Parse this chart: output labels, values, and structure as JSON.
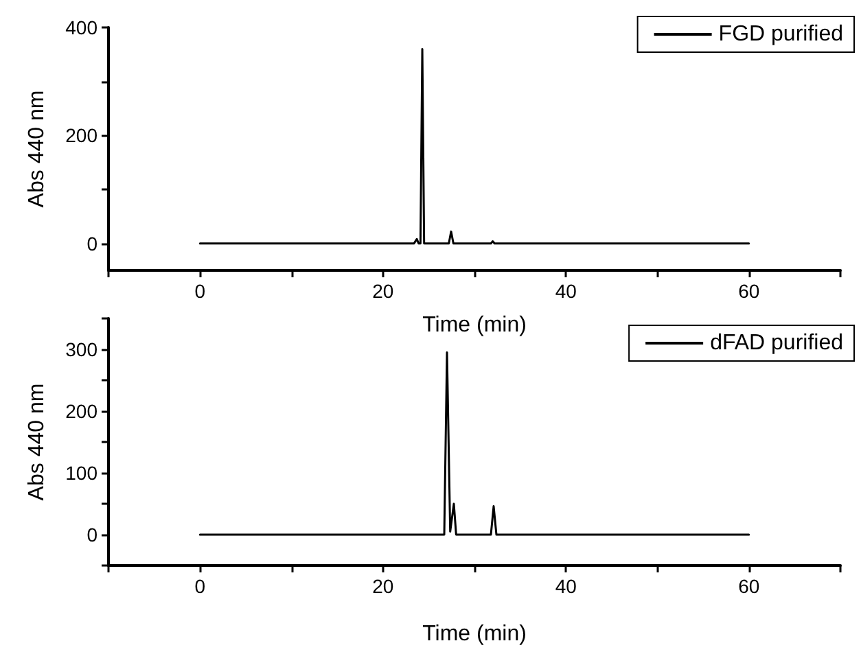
{
  "chart_data": [
    {
      "type": "line",
      "xlabel": "Time (min)",
      "ylabel": "Abs 440 nm",
      "legend": "top right",
      "grid": false,
      "marker": "none",
      "line_style": "solid",
      "xlim": [
        -10,
        70
      ],
      "xticks": [
        {
          "value": -10,
          "label": null
        },
        0,
        {
          "value": 10,
          "label": null
        },
        20,
        {
          "value": 30,
          "label": null
        },
        40,
        {
          "value": 50,
          "label": null
        },
        60,
        {
          "value": 70,
          "label": null
        }
      ],
      "ylim": [
        -50,
        400
      ],
      "yticks": [
        0,
        {
          "value": 100,
          "label": null
        },
        200,
        {
          "value": 300,
          "label": null
        },
        400
      ],
      "series": [
        {
          "name": "FGD purified",
          "color": "#000000",
          "x": [
            0,
            23.4,
            23.7,
            23.9,
            24.1,
            24.3,
            24.5,
            27.2,
            27.45,
            27.7,
            31.8,
            32,
            32.2,
            60
          ],
          "values": [
            0,
            0,
            8,
            0,
            0,
            360,
            0,
            0,
            22,
            0,
            0,
            4,
            0,
            0
          ]
        }
      ]
    },
    {
      "type": "line",
      "xlabel": "Time (min)",
      "ylabel": "Abs 440 nm",
      "legend": "top right",
      "grid": false,
      "marker": "none",
      "line_style": "solid",
      "xlim": [
        -10,
        70
      ],
      "xticks": [
        {
          "value": -10,
          "label": null
        },
        0,
        {
          "value": 10,
          "label": null
        },
        20,
        {
          "value": 30,
          "label": null
        },
        40,
        {
          "value": 50,
          "label": null
        },
        60,
        {
          "value": 70,
          "label": null
        }
      ],
      "ylim": [
        -50,
        350
      ],
      "yticks": [
        {
          "value": -50,
          "label": null
        },
        0,
        {
          "value": 50,
          "label": null
        },
        100,
        {
          "value": 150,
          "label": null
        },
        200,
        {
          "value": 250,
          "label": null
        },
        300,
        {
          "value": 350,
          "label": null
        }
      ],
      "series": [
        {
          "name": "dFAD purified",
          "color": "#000000",
          "x": [
            0,
            26.7,
            27,
            27.35,
            27.75,
            28,
            31.8,
            32.1,
            32.4,
            60
          ],
          "values": [
            0,
            0,
            295,
            5,
            50,
            0,
            0,
            46,
            0,
            0
          ]
        }
      ]
    }
  ]
}
